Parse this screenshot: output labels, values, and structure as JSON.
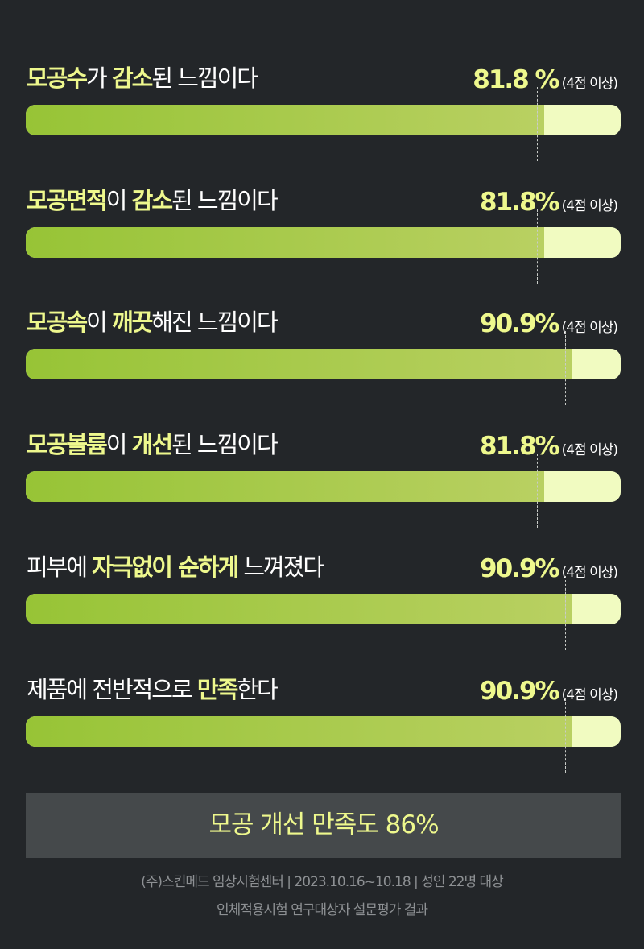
{
  "rows": [
    {
      "title": [
        {
          "t": "모공수",
          "hl": true
        },
        {
          "t": "가 ",
          "hl": false
        },
        {
          "t": "감소",
          "hl": true
        },
        {
          "t": "된 느낌이다",
          "hl": false
        }
      ],
      "value": 81.8,
      "value_label": "81.8 %",
      "note": "(4점 이상)"
    },
    {
      "title": [
        {
          "t": "모공면적",
          "hl": true
        },
        {
          "t": "이 ",
          "hl": false
        },
        {
          "t": "감소",
          "hl": true
        },
        {
          "t": "된 느낌이다",
          "hl": false
        }
      ],
      "value": 81.8,
      "value_label": "81.8%",
      "note": "(4점 이상)"
    },
    {
      "title": [
        {
          "t": "모공속",
          "hl": true
        },
        {
          "t": "이 ",
          "hl": false
        },
        {
          "t": "깨끗",
          "hl": true
        },
        {
          "t": "해진 느낌이다",
          "hl": false
        }
      ],
      "value": 90.9,
      "value_label": "90.9%",
      "note": "(4점 이상)"
    },
    {
      "title": [
        {
          "t": "모공볼륨",
          "hl": true
        },
        {
          "t": "이 ",
          "hl": false
        },
        {
          "t": "개선",
          "hl": true
        },
        {
          "t": "된 느낌이다",
          "hl": false
        }
      ],
      "value": 81.8,
      "value_label": "81.8%",
      "note": "(4점 이상)"
    },
    {
      "title": [
        {
          "t": "피부에 ",
          "hl": false
        },
        {
          "t": "자극없이 순하게",
          "hl": true
        },
        {
          "t": " 느껴졌다",
          "hl": false
        }
      ],
      "value": 90.9,
      "value_label": "90.9%",
      "note": "(4점 이상)"
    },
    {
      "title": [
        {
          "t": "제품에 전반적으로 ",
          "hl": false
        },
        {
          "t": "만족",
          "hl": true
        },
        {
          "t": "한다",
          "hl": false
        }
      ],
      "value": 90.9,
      "value_label": "90.9%",
      "note": "(4점 이상)"
    }
  ],
  "summary": "모공 개선 만족도 86%",
  "footer": {
    "line1": "(주)스킨메드 임상시험센터 | 2023.10.16~10.18 | 성인 22명 대상",
    "line2": "인체적용시험 연구대상자 설문평가 결과"
  },
  "colors": {
    "background": "#232629",
    "highlight": "#eef88d",
    "bar_fill_start": "#97c436",
    "bar_fill_end": "#b9d062",
    "bar_track": "#f1fbc1",
    "summary_bg": "#45494b"
  }
}
